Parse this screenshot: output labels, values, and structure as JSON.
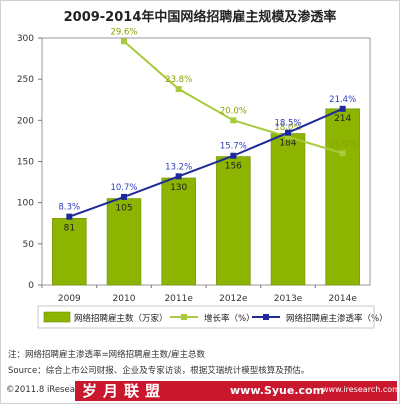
{
  "chart_data": {
    "type": "bar",
    "title": "2009-2014年中国网络招聘雇主规模及渗透率",
    "categories": [
      "2009",
      "2010",
      "2011e",
      "2012e",
      "2013e",
      "2014e"
    ],
    "ylim": [
      0,
      300
    ],
    "yticks": [
      "0",
      "50",
      "100",
      "150",
      "200",
      "250",
      "300"
    ],
    "grid": false,
    "series": [
      {
        "name": "网络招聘雇主数（万家）",
        "type": "bar",
        "color": "#8cb400",
        "values": [
          81,
          105,
          130,
          156,
          184,
          214
        ],
        "labels": [
          "81",
          "105",
          "130",
          "156",
          "184",
          "214"
        ]
      },
      {
        "name": "增长率（%）",
        "type": "line",
        "color": "#a7cb3a",
        "values": [
          null,
          29.6,
          23.8,
          20.0,
          18.0,
          16.0
        ],
        "labels": [
          "",
          "29.6%",
          "23.8%",
          "20.0%",
          "18.0%",
          "16.0%"
        ]
      },
      {
        "name": "网络招聘雇主渗透率（%）",
        "type": "line",
        "color": "#1f2a9a",
        "values": [
          8.3,
          10.7,
          13.2,
          15.7,
          18.5,
          21.4
        ],
        "labels": [
          "8.3%",
          "10.7%",
          "13.2%",
          "15.7%",
          "18.5%",
          "21.4%"
        ]
      }
    ],
    "legend_position": "bottom"
  },
  "note": "注：网络招聘雇主渗透率=网络招聘雇主数/雇主总数",
  "source": "Source：综合上市公司财报、企业及专家访谈，根据艾瑞统计模型核算及预估。",
  "copyright": "©2011.8 iResearch Inc.",
  "watermark_cn": "岁月联盟",
  "watermark_url": "www.Syue.com",
  "site": "www.iresearch.com.cn"
}
